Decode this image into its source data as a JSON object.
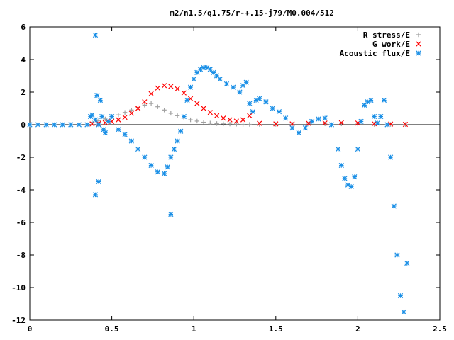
{
  "chart_data": {
    "type": "scatter",
    "title": "m2/n1.5/q1.75/r-+.15-j79/M0.004/512",
    "xlabel": "",
    "ylabel": "",
    "xlim": [
      0,
      2.5
    ],
    "ylim": [
      -12,
      6
    ],
    "xticks": [
      0,
      0.5,
      1,
      1.5,
      2,
      2.5
    ],
    "xtick_labels": [
      "0",
      "0.5",
      "1",
      "1.5",
      "2",
      "2.5"
    ],
    "yticks": [
      -12,
      -10,
      -8,
      -6,
      -4,
      -2,
      0,
      2,
      4,
      6
    ],
    "ytick_labels": [
      "-12",
      "-10",
      "-8",
      "-6",
      "-4",
      "-2",
      "0",
      "2",
      "4",
      "6"
    ],
    "grid": false,
    "legend_position": "top-right",
    "series": [
      {
        "name": "R stress/E",
        "marker": "plus",
        "color": "#a0a0a0",
        "x": [
          0.38,
          0.42,
          0.46,
          0.5,
          0.54,
          0.58,
          0.62,
          0.66,
          0.7,
          0.74,
          0.78,
          0.82,
          0.86,
          0.9,
          0.94,
          0.98,
          1.02,
          1.06,
          1.1,
          1.14,
          1.18,
          1.22,
          1.26,
          1.3,
          1.34,
          1.4,
          1.5,
          1.6,
          1.7,
          1.8,
          1.9,
          2.0,
          2.1,
          2.2,
          2.29
        ],
        "y": [
          0.15,
          0.25,
          0.35,
          0.5,
          0.6,
          0.75,
          0.9,
          1.05,
          1.2,
          1.3,
          1.1,
          0.9,
          0.7,
          0.55,
          0.4,
          0.3,
          0.22,
          0.15,
          0.1,
          0.07,
          0.05,
          0.04,
          0.03,
          0.02,
          0.02,
          0.02,
          0.02,
          0.03,
          0.04,
          0.05,
          0.05,
          0.04,
          0.02,
          0.02,
          0.01
        ]
      },
      {
        "name": "G work/E",
        "marker": "cross",
        "color": "#ff0000",
        "x": [
          0.38,
          0.42,
          0.46,
          0.5,
          0.54,
          0.58,
          0.62,
          0.66,
          0.7,
          0.74,
          0.78,
          0.82,
          0.86,
          0.9,
          0.94,
          0.98,
          1.02,
          1.06,
          1.1,
          1.14,
          1.18,
          1.22,
          1.26,
          1.3,
          1.34,
          1.4,
          1.5,
          1.6,
          1.7,
          1.8,
          1.9,
          2.0,
          2.1,
          2.2,
          2.29
        ],
        "y": [
          0.05,
          0.08,
          0.12,
          0.2,
          0.3,
          0.45,
          0.7,
          1.0,
          1.4,
          1.9,
          2.25,
          2.4,
          2.35,
          2.2,
          1.95,
          1.6,
          1.3,
          1.0,
          0.75,
          0.55,
          0.4,
          0.3,
          0.22,
          0.3,
          0.55,
          0.08,
          0.05,
          0.05,
          0.08,
          0.1,
          0.12,
          0.1,
          0.06,
          0.04,
          0.02
        ]
      },
      {
        "name": "Acoustic flux/E",
        "marker": "star",
        "color": "#1a8fe6",
        "x": [
          0.0,
          0.05,
          0.1,
          0.15,
          0.2,
          0.25,
          0.3,
          0.35,
          0.37,
          0.4,
          0.42,
          0.45,
          0.48,
          0.5,
          0.54,
          0.58,
          0.62,
          0.66,
          0.7,
          0.74,
          0.78,
          0.82,
          0.84,
          0.86,
          0.88,
          0.9,
          0.92,
          0.94,
          0.96,
          0.98,
          1.0,
          1.02,
          1.04,
          1.06,
          1.08,
          1.1,
          1.12,
          1.14,
          1.16,
          1.2,
          1.24,
          1.28,
          1.3,
          1.32,
          1.34,
          1.36,
          1.38,
          1.4,
          1.44,
          1.48,
          1.52,
          1.56,
          1.6,
          1.64,
          1.68,
          1.72,
          1.76,
          1.8,
          1.84,
          1.88,
          1.9,
          1.92,
          1.94,
          1.96,
          1.98,
          2.0,
          2.02,
          2.04,
          2.06,
          2.08,
          2.1,
          2.12,
          2.14,
          2.16,
          2.18,
          2.2,
          2.22,
          2.24,
          2.26,
          2.28,
          2.3,
          0.4,
          0.41,
          0.42,
          0.43,
          0.86,
          0.38,
          0.4,
          0.44,
          0.46
        ],
        "y": [
          0.0,
          0.0,
          0.0,
          0.0,
          0.0,
          0.0,
          0.0,
          0.0,
          0.5,
          0.3,
          0.0,
          -0.3,
          0.2,
          0.5,
          -0.3,
          -0.6,
          -1.0,
          -1.5,
          -2.0,
          -2.5,
          -2.9,
          -3.0,
          -2.6,
          -2.0,
          -1.5,
          -1.0,
          -0.4,
          0.5,
          1.5,
          2.3,
          2.8,
          3.2,
          3.4,
          3.5,
          3.5,
          3.4,
          3.2,
          3.0,
          2.8,
          2.5,
          2.3,
          2.0,
          2.4,
          2.6,
          1.3,
          0.8,
          1.5,
          1.6,
          1.4,
          1.0,
          0.8,
          0.4,
          -0.2,
          -0.5,
          -0.2,
          0.2,
          0.35,
          0.4,
          0.0,
          -1.5,
          -2.5,
          -3.3,
          -3.7,
          -3.8,
          -3.2,
          -1.5,
          0.2,
          1.2,
          1.4,
          1.5,
          0.5,
          0.1,
          0.5,
          1.5,
          0.0,
          -2.0,
          -5.0,
          -8.0,
          -10.5,
          -11.5,
          -8.5,
          5.5,
          1.8,
          -3.5,
          1.5,
          -5.5,
          0.6,
          -4.3,
          0.5,
          -0.5
        ]
      }
    ]
  }
}
